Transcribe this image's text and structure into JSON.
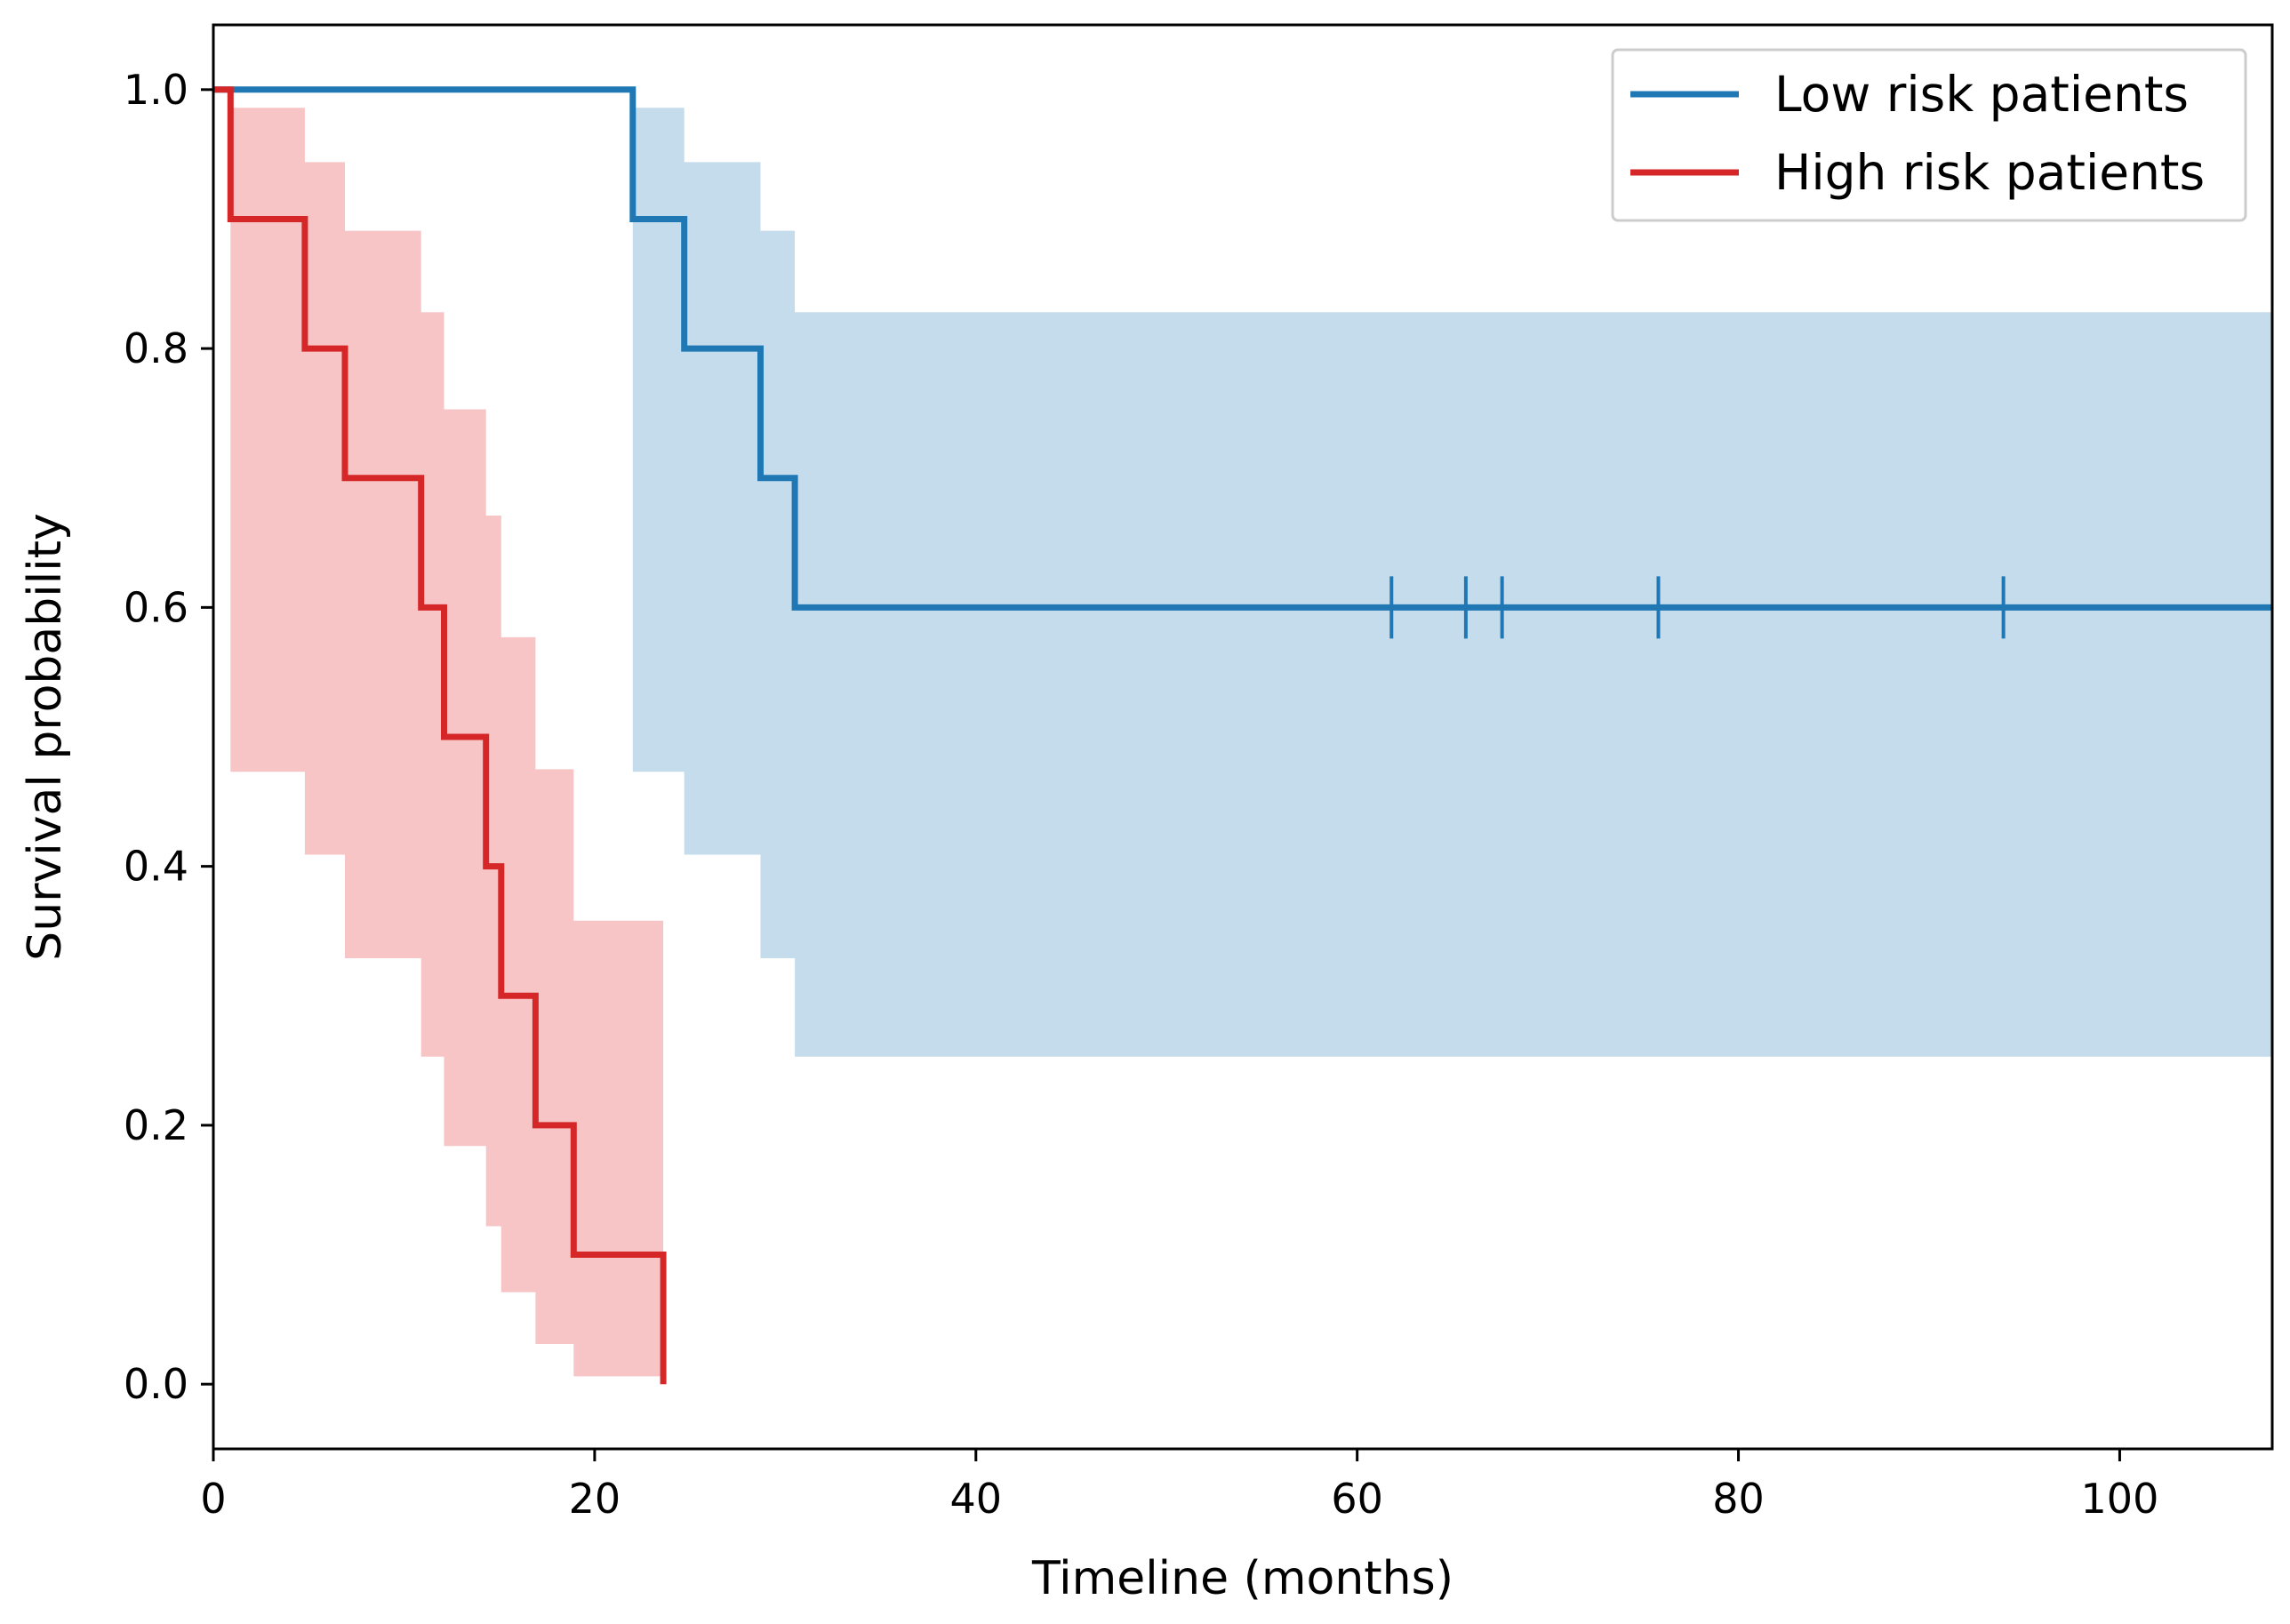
{
  "chart_data": {
    "type": "line",
    "subtype": "kaplan-meier-step",
    "xlabel": "Timeline (months)",
    "ylabel": "Survival probability",
    "xlim": [
      0,
      108
    ],
    "ylim": [
      -0.05,
      1.05
    ],
    "xticks": [
      0,
      20,
      40,
      60,
      80,
      100
    ],
    "yticks": [
      0.0,
      0.2,
      0.4,
      0.6,
      0.8,
      1.0
    ],
    "xtick_labels": [
      "0",
      "20",
      "40",
      "60",
      "80",
      "100"
    ],
    "ytick_labels": [
      "0.0",
      "0.2",
      "0.4",
      "0.6",
      "0.8",
      "1.0"
    ],
    "grid": false,
    "legend_position": "top-right",
    "series": [
      {
        "name": "Low risk patients",
        "color": "#1f77b4",
        "band_color": "#c5dcec",
        "x": [
          0,
          22,
          24.7,
          28.7,
          30.5,
          108
        ],
        "y": [
          1.0,
          0.9,
          0.8,
          0.7,
          0.6,
          0.6
        ],
        "ci_lower": [
          1.0,
          0.473,
          0.409,
          0.329,
          0.253,
          0.253
        ],
        "ci_upper": [
          1.0,
          0.986,
          0.944,
          0.891,
          0.828,
          0.828
        ],
        "censor_times": [
          61.8,
          65.7,
          67.6,
          75.8,
          93.9
        ]
      },
      {
        "name": "High risk patients",
        "color": "#d62728",
        "band_color": "#f7c5c5",
        "x": [
          0,
          0.9,
          4.8,
          6.9,
          10.9,
          12.1,
          14.3,
          15.1,
          16.9,
          18.9,
          23.6
        ],
        "y": [
          1.0,
          0.9,
          0.8,
          0.7,
          0.6,
          0.5,
          0.4,
          0.3,
          0.2,
          0.1,
          0.0
        ],
        "ci_lower": [
          1.0,
          0.473,
          0.409,
          0.329,
          0.253,
          0.184,
          0.122,
          0.071,
          0.031,
          0.006,
          0.0
        ],
        "ci_upper": [
          1.0,
          0.986,
          0.944,
          0.891,
          0.828,
          0.753,
          0.671,
          0.577,
          0.475,
          0.358,
          0.0
        ],
        "censor_times": []
      }
    ]
  }
}
